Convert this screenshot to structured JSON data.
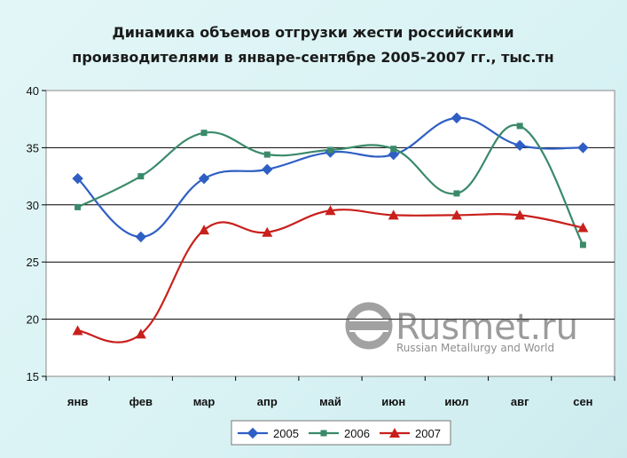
{
  "chart_data": {
    "type": "line",
    "title": "Динамика объемов отгрузки жести российскими",
    "title_line2": "производителями в январе-сентябре 2005-2007 гг., тыс.тн",
    "categories": [
      "янв",
      "фев",
      "мар",
      "апр",
      "май",
      "июн",
      "июл",
      "авг",
      "сен"
    ],
    "ylim": [
      15,
      40
    ],
    "yticks": [
      15,
      20,
      25,
      30,
      35,
      40
    ],
    "grid": true,
    "legend_position": "bottom",
    "series": [
      {
        "name": "2005",
        "color": "#2f5fc4",
        "marker": "diamond",
        "values": [
          32.3,
          27.2,
          32.3,
          33.1,
          34.6,
          34.4,
          37.6,
          35.2,
          35.0
        ]
      },
      {
        "name": "2006",
        "color": "#3a8a6a",
        "marker": "square",
        "values": [
          29.8,
          32.5,
          36.3,
          34.4,
          34.8,
          34.9,
          31.0,
          36.9,
          26.5
        ]
      },
      {
        "name": "2007",
        "color": "#c8201c",
        "marker": "triangle",
        "values": [
          19.0,
          18.7,
          27.8,
          27.6,
          29.5,
          29.1,
          29.1,
          29.1,
          28.0
        ]
      }
    ]
  },
  "watermark": {
    "brand": "Rusmet.ru",
    "tagline": "Russian Metallurgy and World"
  }
}
